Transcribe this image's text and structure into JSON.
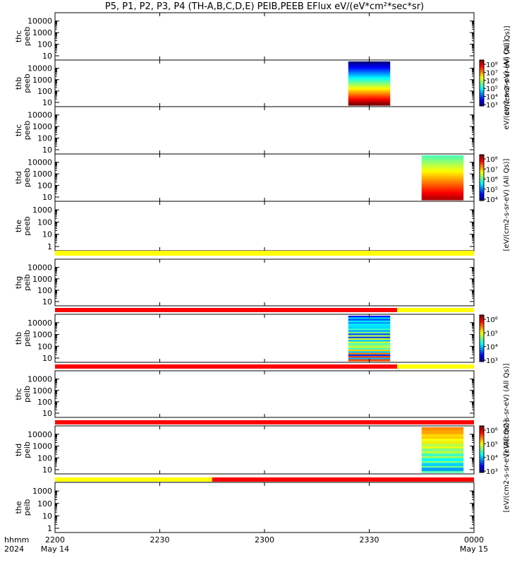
{
  "title": "P5, P1, P2, P3, P4 (TH-A,B,C,D,E) PEIB,PEEB EFlux eV/(eV*cm²*sec*sr)",
  "chart_data": {
    "type": "heatmap",
    "x_range": [
      "2024-05-14 22:00",
      "2024-05-15 00:00"
    ],
    "x_ticks": [
      "2200",
      "2230",
      "2300",
      "2330",
      "0000"
    ],
    "x_axis_label": [
      "hhmm",
      "2024"
    ],
    "x_dates": [
      "May 14",
      "May 15"
    ],
    "panels": [
      {
        "label": [
          "thc",
          "peeb"
        ],
        "y_ticks": [
          "10",
          "100",
          "1000",
          "10000"
        ],
        "log": true
      },
      {
        "label": [
          "thb",
          "peeb"
        ],
        "y_ticks": [
          "10",
          "100",
          "1000",
          "10000"
        ],
        "log": true,
        "spectrogram": {
          "start": "2324",
          "end": "2336"
        }
      },
      {
        "label": [
          "thc",
          "peeb"
        ],
        "y_ticks": [
          "10",
          "100",
          "1000",
          "10000"
        ],
        "log": true
      },
      {
        "label": [
          "thd",
          "peeb"
        ],
        "y_ticks": [
          "10",
          "100",
          "1000",
          "10000"
        ],
        "log": true,
        "spectrogram": {
          "start": "2345",
          "end": "2357"
        }
      },
      {
        "label": [
          "the",
          "peeb"
        ],
        "y_ticks": [
          "1",
          "10",
          "100",
          "1000"
        ],
        "log": true
      },
      {
        "label": [
          "thg",
          "peib"
        ],
        "y_ticks": [
          "10",
          "100",
          "1000",
          "10000"
        ],
        "log": true
      },
      {
        "label": [
          "thb",
          "peib"
        ],
        "y_ticks": [
          "10",
          "100",
          "1000",
          "10000"
        ],
        "log": true,
        "spectrogram": {
          "start": "2324",
          "end": "2336"
        }
      },
      {
        "label": [
          "thc",
          "peib"
        ],
        "y_ticks": [
          "10",
          "100",
          "1000",
          "10000"
        ],
        "log": true
      },
      {
        "label": [
          "thd",
          "peib"
        ],
        "y_ticks": [
          "10",
          "100",
          "1000",
          "10000"
        ],
        "log": true,
        "spectrogram": {
          "start": "2345",
          "end": "2357"
        }
      },
      {
        "label": [
          "the",
          "peib"
        ],
        "y_ticks": [
          "1",
          "10",
          "100",
          "1000"
        ],
        "log": true
      }
    ],
    "status_bars": [
      {
        "after_panel": 4,
        "segments": [
          {
            "from": "2200",
            "to": "0000",
            "color": "#ffff00"
          }
        ]
      },
      {
        "after_panel": 5,
        "segments": [
          {
            "from": "2200",
            "to": "2338",
            "color": "#ff0000"
          },
          {
            "from": "2338",
            "to": "0000",
            "color": "#ffff00"
          }
        ]
      },
      {
        "after_panel": 6,
        "segments": [
          {
            "from": "2200",
            "to": "2338",
            "color": "#ff0000"
          },
          {
            "from": "2338",
            "to": "0000",
            "color": "#ffff00"
          }
        ]
      },
      {
        "after_panel": 7,
        "segments": [
          {
            "from": "2200",
            "to": "0000",
            "color": "#ff0000"
          }
        ]
      },
      {
        "after_panel": 8,
        "segments": [
          {
            "from": "2200",
            "to": "2245",
            "color": "#ffff00"
          },
          {
            "from": "2245",
            "to": "0000",
            "color": "#ff0000"
          }
        ]
      }
    ],
    "colorbars": [
      {
        "ticks": [
          "10⁸",
          "10⁷",
          "10⁶",
          "10⁵",
          "10⁴",
          "10³"
        ],
        "label": "eV/(cm2-s-sr-eV) (All Qs)]"
      },
      {
        "ticks": [
          "10⁸",
          "10⁷",
          "10⁶",
          "10⁵",
          "10⁴"
        ],
        "label": "[eV/(cm2-s-sr-eV) (All Qs)]"
      },
      {
        "ticks": [
          "10⁶",
          "10⁵",
          "10⁴",
          "10³"
        ],
        "label": "[eV/(cm2-s-sr-eV) (All Qs)]"
      },
      {
        "ticks": [
          "10⁶",
          "10⁵",
          "10⁴",
          "10³"
        ],
        "label": "[eV/(cm2-s-sr-eV) (All Qs)]"
      }
    ],
    "colorbar_extra_label": "eV/(cm2-s-sr-eV) (All Qs)]"
  }
}
